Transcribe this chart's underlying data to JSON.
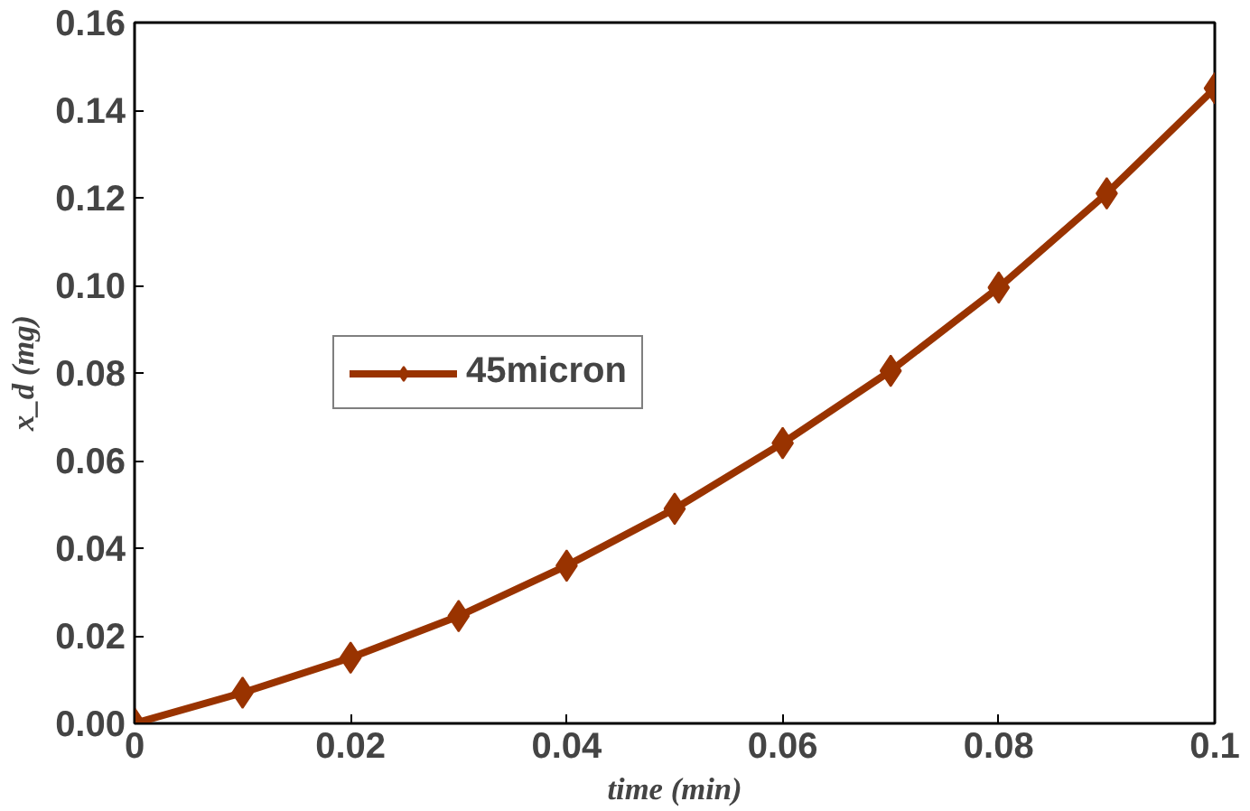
{
  "chart_data": {
    "type": "line",
    "xlabel": "time (min)",
    "ylabel": "x_d (mg)",
    "x": [
      0,
      0.01,
      0.02,
      0.03,
      0.04,
      0.05,
      0.06,
      0.07,
      0.08,
      0.09,
      0.1
    ],
    "series": [
      {
        "name": "45micron",
        "color": "#993300",
        "values": [
          0,
          0.007,
          0.015,
          0.0245,
          0.036,
          0.049,
          0.064,
          0.0805,
          0.0995,
          0.121,
          0.145
        ]
      }
    ],
    "xlim": [
      0,
      0.1
    ],
    "xticks": [
      0,
      0.02,
      0.04,
      0.06,
      0.08,
      0.1
    ],
    "ylim": [
      0,
      0.16
    ],
    "yticks": [
      {
        "value": 0,
        "label": "0.00"
      },
      {
        "value": 0.02,
        "label": "0.02"
      },
      {
        "value": 0.04,
        "label": "0.04"
      },
      {
        "value": 0.06,
        "label": "0.06"
      },
      {
        "value": 0.08,
        "label": "0.08"
      },
      {
        "value": 0.1,
        "label": "0.10"
      },
      {
        "value": 0.12,
        "label": "0.12"
      },
      {
        "value": 0.14,
        "label": "0.14"
      },
      {
        "value": 0.16,
        "label": "0.16"
      }
    ],
    "grid": false,
    "legend": "left",
    "marker": "diamond",
    "line_style": "solid"
  }
}
